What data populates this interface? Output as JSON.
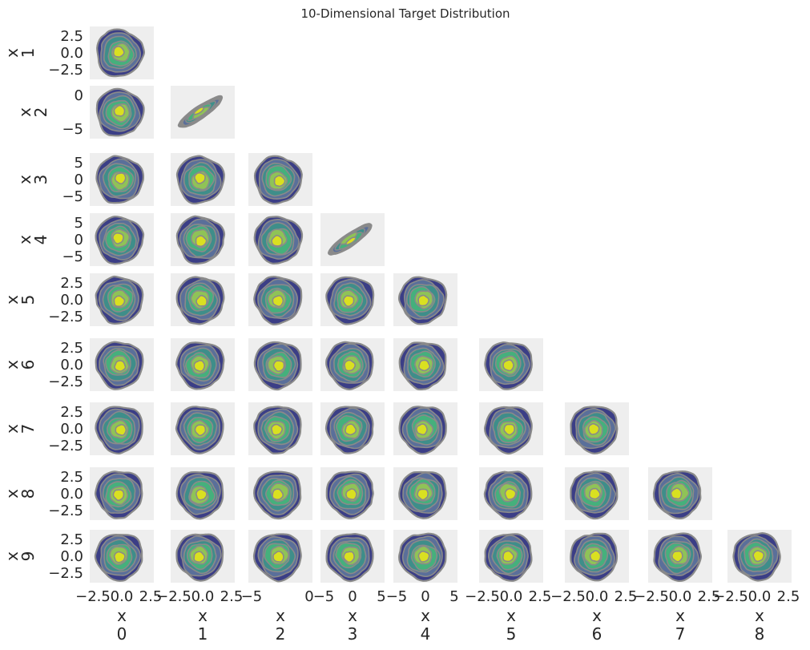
{
  "chart_data": {
    "type": "kde_corner",
    "title": "10-Dimensional Target Distribution",
    "variables": [
      "0",
      "1",
      "2",
      "3",
      "4",
      "5",
      "6",
      "7",
      "8",
      "9"
    ],
    "axis_label_prefix": "x",
    "grid": false,
    "colormap": [
      "#3b3e86",
      "#5a6f9a",
      "#3e8e8a",
      "#45b07c",
      "#8fc357",
      "#d9e021"
    ],
    "contour_edge_color": "#8a8a8a",
    "x_ticks": {
      "0": [
        "−2.5",
        "0.0",
        "2.5"
      ],
      "1": [
        "−2.5",
        "0.0",
        "2.5"
      ],
      "2": [
        "−5",
        "0"
      ],
      "3": [
        "−5",
        "0",
        "5"
      ],
      "4": [
        "−5",
        "0",
        "5"
      ],
      "5": [
        "−2.5",
        "0.0",
        "2.5"
      ],
      "6": [
        "−2.5",
        "0.0",
        "2.5"
      ],
      "7": [
        "−2.5",
        "0.0",
        "2.5"
      ],
      "8": [
        "−2.5",
        "0.0",
        "2.5"
      ]
    },
    "y_ticks": {
      "1": [
        "2.5",
        "0.0",
        "−2.5"
      ],
      "2": [
        "0",
        "−5"
      ],
      "3": [
        "5",
        "0",
        "−5"
      ],
      "4": [
        "5",
        "0",
        "−5"
      ],
      "5": [
        "2.5",
        "0.0",
        "−2.5"
      ],
      "6": [
        "2.5",
        "0.0",
        "−2.5"
      ],
      "7": [
        "2.5",
        "0.0",
        "−2.5"
      ],
      "8": [
        "2.5",
        "0.0",
        "−2.5"
      ],
      "9": [
        "2.5",
        "0.0",
        "−2.5"
      ]
    },
    "correlated_pairs": [
      {
        "x": "1",
        "y": "2"
      },
      {
        "x": "3",
        "y": "4"
      }
    ]
  }
}
